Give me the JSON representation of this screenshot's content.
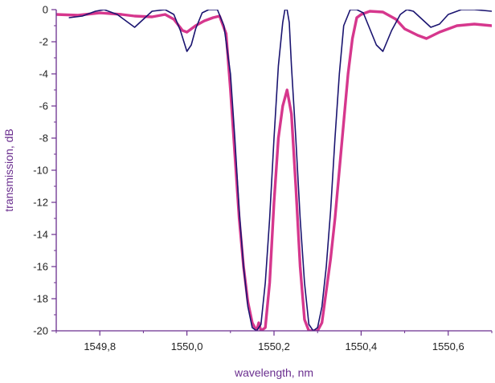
{
  "chart_data": {
    "type": "line",
    "title": "",
    "xlabel": "wavelength, nm",
    "ylabel": "transmission, dB",
    "xlim": [
      1549.7,
      1550.7
    ],
    "ylim": [
      -20,
      0
    ],
    "x_ticks": [
      1549.8,
      1550.0,
      1550.2,
      1550.4,
      1550.6
    ],
    "x_tick_labels": [
      "1549,8",
      "1550,0",
      "1550,2",
      "1550,4",
      "1550,6"
    ],
    "y_ticks": [
      0,
      -2,
      -4,
      -6,
      -8,
      -10,
      -12,
      -14,
      -16,
      -18,
      -20
    ],
    "y_tick_labels": [
      "0",
      "-2",
      "-4",
      "-6",
      "-8",
      "-10",
      "-12",
      "-14",
      "-16",
      "-18",
      "-20"
    ],
    "grid": false,
    "legend": "none",
    "axis_color": "#6b2f8f",
    "series": [
      {
        "color": "#d6378d",
        "x": [
          1549.7,
          1549.75,
          1549.8,
          1549.85,
          1549.88,
          1549.92,
          1549.95,
          1549.97,
          1549.99,
          1550.0,
          1550.02,
          1550.04,
          1550.06,
          1550.075,
          1550.09,
          1550.1,
          1550.11,
          1550.12,
          1550.13,
          1550.14,
          1550.15,
          1550.16,
          1550.165,
          1550.17,
          1550.18,
          1550.19,
          1550.2,
          1550.21,
          1550.22,
          1550.23,
          1550.24,
          1550.25,
          1550.26,
          1550.27,
          1550.28,
          1550.29,
          1550.3,
          1550.31,
          1550.32,
          1550.33,
          1550.34,
          1550.35,
          1550.36,
          1550.37,
          1550.38,
          1550.39,
          1550.4,
          1550.42,
          1550.45,
          1550.48,
          1550.5,
          1550.53,
          1550.55,
          1550.58,
          1550.62,
          1550.66,
          1550.7
        ],
        "y": [
          -0.3,
          -0.35,
          -0.2,
          -0.3,
          -0.4,
          -0.45,
          -0.3,
          -0.6,
          -1.3,
          -1.4,
          -1.0,
          -0.7,
          -0.5,
          -0.4,
          -1.5,
          -5.0,
          -9.0,
          -13.0,
          -16.0,
          -18.2,
          -19.5,
          -20.0,
          -19.5,
          -20.0,
          -19.8,
          -17.0,
          -12.0,
          -8.0,
          -6.0,
          -5.0,
          -6.5,
          -11.0,
          -16.0,
          -19.3,
          -20.0,
          -20.0,
          -20.0,
          -19.5,
          -17.5,
          -15.5,
          -13.0,
          -10.0,
          -7.0,
          -4.0,
          -1.8,
          -0.5,
          -0.3,
          -0.1,
          -0.15,
          -0.6,
          -1.2,
          -1.6,
          -1.8,
          -1.4,
          -1.0,
          -0.9,
          -1.0
        ]
      },
      {
        "color": "#1a1470",
        "x": [
          1549.73,
          1549.76,
          1549.79,
          1549.81,
          1549.84,
          1549.87,
          1549.88,
          1549.9,
          1549.92,
          1549.95,
          1549.97,
          1549.985,
          1550.0,
          1550.01,
          1550.02,
          1550.035,
          1550.05,
          1550.07,
          1550.085,
          1550.1,
          1550.11,
          1550.12,
          1550.13,
          1550.14,
          1550.15,
          1550.16,
          1550.17,
          1550.18,
          1550.19,
          1550.2,
          1550.21,
          1550.22,
          1550.225,
          1550.23,
          1550.235,
          1550.24,
          1550.25,
          1550.26,
          1550.27,
          1550.28,
          1550.29,
          1550.3,
          1550.31,
          1550.32,
          1550.33,
          1550.34,
          1550.35,
          1550.36,
          1550.375,
          1550.39,
          1550.405,
          1550.42,
          1550.435,
          1550.45,
          1550.47,
          1550.49,
          1550.505,
          1550.52,
          1550.54,
          1550.56,
          1550.58,
          1550.6,
          1550.63,
          1550.66,
          1550.7
        ],
        "y": [
          -0.5,
          -0.4,
          -0.1,
          0.0,
          -0.3,
          -0.9,
          -1.1,
          -0.6,
          -0.1,
          0.0,
          -0.3,
          -1.3,
          -2.6,
          -2.2,
          -1.2,
          -0.2,
          0.0,
          0.0,
          -1.0,
          -4.0,
          -8.0,
          -12.5,
          -16.0,
          -18.5,
          -19.8,
          -20.0,
          -19.6,
          -17.0,
          -13.0,
          -8.0,
          -3.5,
          -0.8,
          0.0,
          0.0,
          -0.8,
          -3.5,
          -8.0,
          -13.0,
          -17.0,
          -19.6,
          -20.0,
          -19.8,
          -18.5,
          -16.0,
          -12.5,
          -8.0,
          -4.0,
          -1.0,
          0.0,
          0.0,
          -0.2,
          -1.2,
          -2.2,
          -2.6,
          -1.3,
          -0.3,
          0.0,
          -0.1,
          -0.6,
          -1.1,
          -0.9,
          -0.3,
          0.0,
          0.0,
          -0.1
        ]
      }
    ]
  }
}
